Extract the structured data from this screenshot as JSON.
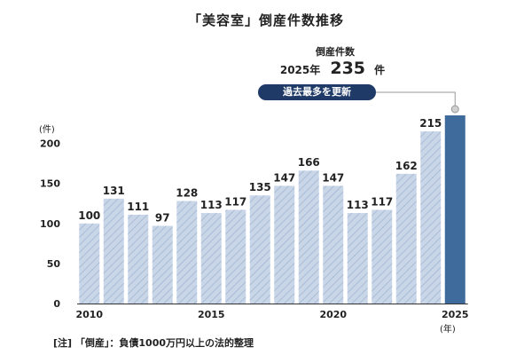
{
  "title": "「美容室」倒産件数推移",
  "callout": {
    "label": "倒産件数",
    "year": "2025年",
    "value": "235",
    "unit": "件",
    "badge": "過去最多を更新"
  },
  "footnote": "[注] 「倒産」：負債1000万円以上の法的整理",
  "colors": {
    "bar": "#c9d6e8",
    "bar_hatch": "#a9bcd6",
    "highlight": "#3f6b9c",
    "axis": "#333333",
    "text": "#222222",
    "badge": "#1f3a66"
  },
  "chart_data": {
    "type": "bar",
    "x": [
      2010,
      2011,
      2012,
      2013,
      2014,
      2015,
      2016,
      2017,
      2018,
      2019,
      2020,
      2021,
      2022,
      2023,
      2024,
      2025
    ],
    "values": [
      100,
      131,
      111,
      97,
      128,
      113,
      117,
      135,
      147,
      166,
      147,
      113,
      117,
      162,
      215,
      235
    ],
    "value_labels": [
      "100",
      "131",
      "111",
      "97",
      "128",
      "113",
      "117",
      "135",
      "147",
      "166",
      "147",
      "113",
      "117",
      "162",
      "215",
      ""
    ],
    "highlight_index": 15,
    "ylabel": "(件)",
    "xlabel": "(年)",
    "ylim": [
      0,
      235
    ],
    "yticks": [
      0,
      50,
      100,
      150,
      200
    ],
    "xtick_labels": [
      {
        "year": 2010,
        "label": "2010"
      },
      {
        "year": 2015,
        "label": "2015"
      },
      {
        "year": 2020,
        "label": "2020"
      },
      {
        "year": 2025,
        "label": "2025"
      }
    ],
    "grid": false,
    "legend": "none"
  }
}
